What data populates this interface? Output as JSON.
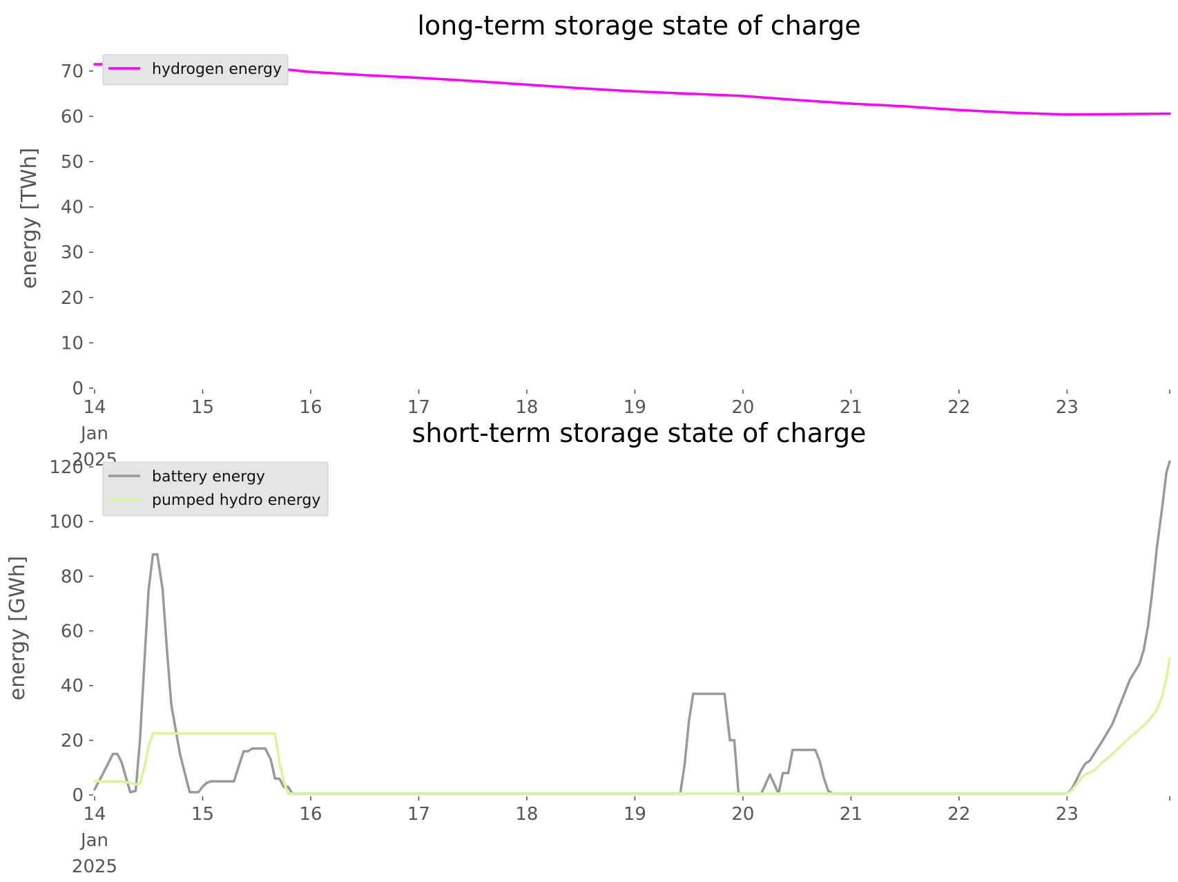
{
  "chart_data": [
    {
      "type": "line",
      "title": "long-term storage state of charge",
      "xlabel": "",
      "ylabel": "energy [TWh]",
      "ylim": [
        0,
        75
      ],
      "yticks": [
        "0",
        "10",
        "20",
        "30",
        "40",
        "50",
        "60",
        "70"
      ],
      "xlim_days": [
        14,
        23.95
      ],
      "xticks": [
        {
          "day": 14,
          "label": [
            "14",
            "Jan",
            "2025"
          ]
        },
        {
          "day": 15,
          "label": [
            "15"
          ]
        },
        {
          "day": 16,
          "label": [
            "16"
          ]
        },
        {
          "day": 17,
          "label": [
            "17"
          ]
        },
        {
          "day": 18,
          "label": [
            "18"
          ]
        },
        {
          "day": 19,
          "label": [
            "19"
          ]
        },
        {
          "day": 20,
          "label": [
            "20"
          ]
        },
        {
          "day": 21,
          "label": [
            "21"
          ]
        },
        {
          "day": 22,
          "label": [
            "22"
          ]
        },
        {
          "day": 23,
          "label": [
            "23"
          ]
        }
      ],
      "grid": false,
      "legend_position": "top-left",
      "series": [
        {
          "name": "hydrogen energy",
          "color": "#ff00ff",
          "x": [
            14.0,
            14.5,
            15.0,
            15.5,
            16.0,
            16.5,
            17.0,
            17.5,
            18.0,
            18.5,
            19.0,
            19.5,
            20.0,
            20.5,
            21.0,
            21.5,
            22.0,
            22.5,
            23.0,
            23.5,
            23.95
          ],
          "y": [
            71.5,
            71.5,
            71.4,
            71.0,
            69.8,
            69.1,
            68.5,
            67.8,
            67.0,
            66.2,
            65.5,
            65.0,
            64.5,
            63.6,
            62.8,
            62.2,
            61.4,
            60.8,
            60.4,
            60.5,
            60.6
          ]
        }
      ]
    },
    {
      "type": "line",
      "title": "short-term storage state of charge",
      "xlabel": "",
      "ylabel": "energy [GWh]",
      "ylim": [
        0,
        122
      ],
      "yticks": [
        "0",
        "20",
        "40",
        "60",
        "80",
        "100",
        "120"
      ],
      "xlim_days": [
        14,
        23.95
      ],
      "xticks": [
        {
          "day": 14,
          "label": [
            "14",
            "Jan",
            "2025"
          ]
        },
        {
          "day": 15,
          "label": [
            "15"
          ]
        },
        {
          "day": 16,
          "label": [
            "16"
          ]
        },
        {
          "day": 17,
          "label": [
            "17"
          ]
        },
        {
          "day": 18,
          "label": [
            "18"
          ]
        },
        {
          "day": 19,
          "label": [
            "19"
          ]
        },
        {
          "day": 20,
          "label": [
            "20"
          ]
        },
        {
          "day": 21,
          "label": [
            "21"
          ]
        },
        {
          "day": 22,
          "label": [
            "22"
          ]
        },
        {
          "day": 23,
          "label": [
            "23"
          ]
        }
      ],
      "grid": false,
      "legend_position": "top-left",
      "series": [
        {
          "name": "battery energy",
          "color": "#999999",
          "x": [
            14.0,
            14.08,
            14.17,
            14.21,
            14.25,
            14.33,
            14.38,
            14.42,
            14.46,
            14.5,
            14.54,
            14.58,
            14.63,
            14.67,
            14.71,
            14.79,
            14.88,
            14.96,
            15.0,
            15.04,
            15.08,
            15.13,
            15.29,
            15.33,
            15.38,
            15.42,
            15.46,
            15.5,
            15.58,
            15.63,
            15.67,
            15.71,
            15.75,
            15.79,
            15.83,
            15.88,
            19.42,
            19.46,
            19.5,
            19.54,
            19.58,
            19.75,
            19.83,
            19.88,
            19.92,
            19.96,
            20.0,
            20.17,
            20.25,
            20.33,
            20.37,
            20.42,
            20.46,
            20.67,
            20.71,
            20.75,
            20.79,
            20.83,
            23.0,
            23.04,
            23.08,
            23.13,
            23.17,
            23.21,
            23.25,
            23.33,
            23.42,
            23.5,
            23.58,
            23.67,
            23.71,
            23.75,
            23.79,
            23.83,
            23.88,
            23.92,
            23.95
          ],
          "y": [
            2,
            8,
            15,
            15,
            12,
            1,
            1.5,
            20,
            48,
            75,
            88,
            88,
            75,
            53,
            33,
            15,
            1,
            1,
            3,
            4.5,
            5,
            5,
            5,
            10,
            16,
            16,
            17,
            17,
            17,
            13,
            6,
            6,
            3,
            3,
            0.5,
            0.5,
            0.5,
            11,
            27,
            37,
            37,
            37,
            37,
            20,
            20,
            0.5,
            0.5,
            0.5,
            7.5,
            0.5,
            8,
            8,
            16.5,
            16.5,
            12.5,
            6,
            1.5,
            0.5,
            0.5,
            2,
            5,
            9,
            11.5,
            12.5,
            15,
            20,
            26,
            34,
            42,
            48,
            53,
            62,
            75,
            90,
            105,
            118,
            122
          ]
        },
        {
          "name": "pumped hydro energy",
          "color": "#d8f59a",
          "x": [
            14.0,
            14.25,
            14.38,
            14.42,
            14.46,
            14.5,
            14.54,
            15.67,
            15.71,
            15.75,
            15.79,
            15.83,
            23.0,
            23.04,
            23.08,
            23.13,
            23.17,
            23.25,
            23.33,
            23.42,
            23.5,
            23.58,
            23.67,
            23.75,
            23.79,
            23.83,
            23.88,
            23.92,
            23.95
          ],
          "y": [
            5,
            5,
            4,
            4,
            10,
            18,
            22.5,
            22.5,
            12,
            5,
            0.5,
            0.5,
            0.5,
            1.5,
            3.5,
            6,
            7.5,
            9,
            12,
            15,
            18,
            21,
            24,
            27,
            29,
            31,
            36,
            43,
            50
          ]
        }
      ]
    }
  ]
}
